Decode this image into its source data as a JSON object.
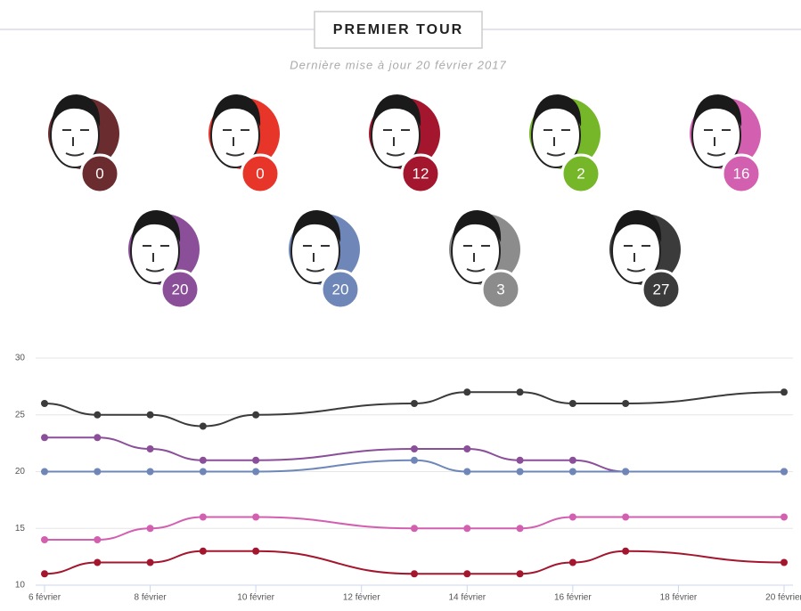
{
  "header": {
    "title": "PREMIER TOUR",
    "subtitle": "Dernière mise à jour 20 février 2017"
  },
  "candidates": [
    {
      "color": "#6b2c2f",
      "value": 0
    },
    {
      "color": "#e8352a",
      "value": 0
    },
    {
      "color": "#a3162e",
      "value": 12
    },
    {
      "color": "#76b72a",
      "value": 2
    },
    {
      "color": "#d35fb0",
      "value": 16
    },
    {
      "color": "#8b4f9a",
      "value": 20
    },
    {
      "color": "#6e87b8",
      "value": 20
    },
    {
      "color": "#8c8c8c",
      "value": 3
    },
    {
      "color": "#3b3b3b",
      "value": 27
    }
  ],
  "chart_data": {
    "type": "line",
    "x": [
      6,
      7,
      8,
      9,
      10,
      13,
      14,
      15,
      16,
      17,
      20
    ],
    "series": [
      {
        "color": "#3b3b3b",
        "values": [
          26,
          25,
          25,
          24,
          25,
          26,
          27,
          27,
          26,
          26,
          27
        ]
      },
      {
        "color": "#8b4f9a",
        "values": [
          23,
          23,
          22,
          21,
          21,
          22,
          22,
          21,
          21,
          20,
          20
        ]
      },
      {
        "color": "#6e87b8",
        "values": [
          20,
          20,
          20,
          20,
          20,
          21,
          20,
          20,
          20,
          20,
          20
        ]
      },
      {
        "color": "#d35fb0",
        "values": [
          14,
          14,
          15,
          16,
          16,
          15,
          15,
          15,
          16,
          16,
          16
        ]
      },
      {
        "color": "#a3162e",
        "values": [
          11,
          12,
          12,
          13,
          13,
          11,
          11,
          11,
          12,
          13,
          12
        ]
      }
    ],
    "xlim": [
      6,
      20
    ],
    "xticks": [
      {
        "value": 6,
        "label": "6 février"
      },
      {
        "value": 8,
        "label": "8 février"
      },
      {
        "value": 10,
        "label": "10 février"
      },
      {
        "value": 12,
        "label": "12 février"
      },
      {
        "value": 14,
        "label": "14 février"
      },
      {
        "value": 16,
        "label": "16 février"
      },
      {
        "value": 18,
        "label": "18 février"
      },
      {
        "value": 20,
        "label": "20 février"
      }
    ],
    "ylim": [
      10,
      30
    ],
    "yticks": [
      10,
      15,
      20,
      25,
      30
    ],
    "grid": true
  }
}
